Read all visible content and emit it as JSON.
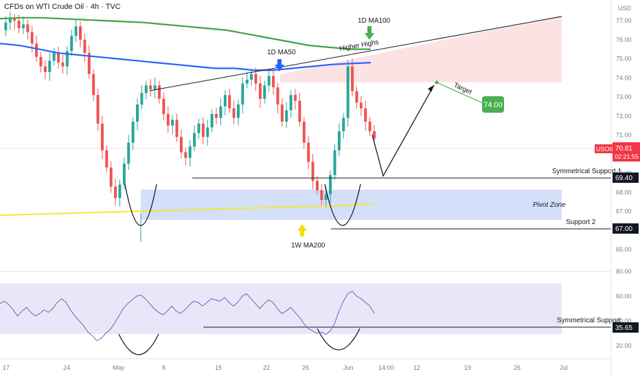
{
  "header": {
    "title": "CFDs on WTI Crude Oil · 4h · TVC"
  },
  "colors": {
    "up": "#26a69a",
    "down": "#ef5350",
    "ma50": "#2962ff",
    "ma100": "#43a047",
    "ma200w": "#f5e642",
    "rsi": "#7e57c2",
    "pivot": "#c9d7f7",
    "resistance": "#fbdcdc",
    "target_badge": "#4caf50",
    "price_badge": "#f23645",
    "arrow": "#4caf50",
    "pointer": "#2962ff",
    "yellow_arrow": "#f7e000"
  },
  "chart_data": [
    {
      "type": "candlestick",
      "currency": "USD",
      "x_ticks": [
        "17",
        "24",
        "May",
        "8",
        "15",
        "22",
        "26",
        "Jun",
        "14:00",
        "12",
        "19",
        "26",
        "Jul"
      ],
      "y_ticks": [
        77.0,
        76.0,
        75.0,
        74.0,
        73.0,
        72.0,
        71.0,
        70.0,
        69.0,
        68.0,
        67.0,
        66.0,
        65.0
      ],
      "ylim": [
        64.4,
        77.6
      ],
      "price_path": [
        76.5,
        76.9,
        77.1,
        77.0,
        76.6,
        76.8,
        76.4,
        75.8,
        75.1,
        74.6,
        74.3,
        74.9,
        75.3,
        74.8,
        74.6,
        75.4,
        76.2,
        76.7,
        76.0,
        75.3,
        74.2,
        73.1,
        71.6,
        70.2,
        69.3,
        68.3,
        67.7,
        68.4,
        69.5,
        70.6,
        71.7,
        72.6,
        73.2,
        73.6,
        73.4,
        73.6,
        72.9,
        72.1,
        71.5,
        71.8,
        70.9,
        70.1,
        69.8,
        70.4,
        71.1,
        71.6,
        70.9,
        71.4,
        72.1,
        71.9,
        72.5,
        73.1,
        72.4,
        71.9,
        72.6,
        73.7,
        73.9,
        74.2,
        73.7,
        72.9,
        73.6,
        74.1,
        73.5,
        72.6,
        71.7,
        72.3,
        73.1,
        72.8,
        71.7,
        70.6,
        69.6,
        68.6,
        68.1,
        67.6,
        67.9,
        68.9,
        70.2,
        71.2,
        71.9,
        74.6,
        73.3,
        72.7,
        72.4,
        71.7,
        71.2,
        70.81
      ],
      "ma50_path": [
        75.8,
        75.7,
        75.5,
        75.3,
        75.2,
        75.1,
        75.0,
        74.9,
        74.8,
        74.7,
        74.6,
        74.5,
        74.5,
        74.4,
        74.4,
        74.5,
        74.6,
        74.7,
        74.75,
        74.8
      ],
      "ma100_path": [
        77.1,
        77.15,
        77.15,
        77.1,
        77.05,
        77.0,
        76.95,
        76.9,
        76.8,
        76.7,
        76.6,
        76.5,
        76.3,
        76.1,
        75.9,
        75.7,
        75.6,
        75.5,
        75.5
      ],
      "ma200w_path": [
        66.8,
        66.85,
        66.9,
        66.95,
        67.0,
        67.05,
        67.1,
        67.15,
        67.2,
        67.25,
        67.3,
        67.4
      ],
      "rsi_path": [
        54,
        56,
        53,
        49,
        44,
        48,
        51,
        47,
        44,
        46,
        49,
        47,
        50,
        55,
        58,
        55,
        49,
        44,
        40,
        36,
        31,
        28,
        24,
        26,
        30,
        33,
        38,
        44,
        50,
        54,
        57,
        60,
        61,
        58,
        54,
        50,
        47,
        45,
        48,
        52,
        48,
        46,
        49,
        53,
        56,
        55,
        52,
        55,
        58,
        57,
        56,
        59,
        55,
        52,
        55,
        60,
        62,
        58,
        54,
        50,
        54,
        57,
        55,
        50,
        46,
        48,
        51,
        47,
        43,
        38,
        34,
        32,
        30,
        31,
        29,
        32,
        38,
        48,
        56,
        62,
        64,
        60,
        58,
        55,
        52,
        46
      ],
      "rsi_y_ticks": [
        80.0,
        60.0,
        40.0,
        20.0
      ],
      "rsi_ylim": [
        10,
        90
      ],
      "price_label": {
        "symbol": "USOIL",
        "value": "70.81",
        "countdown": "02:21:55"
      },
      "level_labels": [
        {
          "name": "Symmetrical Support 1",
          "value": "69.40"
        },
        {
          "name": "Support 2",
          "value": "67.00"
        },
        {
          "name": "Symmetrical Support",
          "value": "35.65"
        }
      ],
      "annotations": {
        "ma50": "1D MA50",
        "ma100": "1D MA100",
        "ma200w": "1W MA200",
        "higher_highs": "Higher Highs",
        "pivot_zone": "Pivot Zone",
        "target": "Target",
        "target_value": "74.00"
      }
    }
  ]
}
